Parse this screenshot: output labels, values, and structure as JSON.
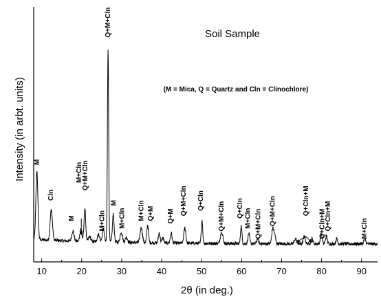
{
  "chart_data": {
    "type": "line",
    "title": "Soil Sample",
    "legend_note": "(M = Mica, Q = Quartz and Cln = Clinochlore)",
    "xlabel": "2θ (in deg.)",
    "ylabel": "Intensity (in arbt. units)",
    "xlim": [
      8,
      94
    ],
    "ylim": [
      0,
      100
    ],
    "y_ticks_shown": false,
    "grid": false,
    "x_ticks": [
      10,
      20,
      30,
      40,
      50,
      60,
      70,
      80,
      90
    ],
    "baseline": 7,
    "peaks": [
      {
        "x": 8.8,
        "h": 27,
        "w": 0.35
      },
      {
        "x": 12.4,
        "h": 12,
        "w": 0.4
      },
      {
        "x": 17.8,
        "h": 4,
        "w": 0.4
      },
      {
        "x": 19.8,
        "h": 5,
        "w": 0.35
      },
      {
        "x": 20.8,
        "h": 13,
        "w": 0.3
      },
      {
        "x": 22.0,
        "h": 2,
        "w": 0.4
      },
      {
        "x": 24.2,
        "h": 3,
        "w": 0.4
      },
      {
        "x": 25.4,
        "h": 5,
        "w": 0.35
      },
      {
        "x": 26.6,
        "h": 76,
        "w": 0.22
      },
      {
        "x": 27.9,
        "h": 11,
        "w": 0.3
      },
      {
        "x": 29.9,
        "h": 4,
        "w": 0.4
      },
      {
        "x": 31.2,
        "h": 2,
        "w": 0.4
      },
      {
        "x": 34.9,
        "h": 6,
        "w": 0.4
      },
      {
        "x": 36.5,
        "h": 7,
        "w": 0.3
      },
      {
        "x": 39.4,
        "h": 4,
        "w": 0.3
      },
      {
        "x": 40.3,
        "h": 2,
        "w": 0.3
      },
      {
        "x": 42.4,
        "h": 4,
        "w": 0.3
      },
      {
        "x": 45.8,
        "h": 6,
        "w": 0.35
      },
      {
        "x": 50.1,
        "h": 9,
        "w": 0.25
      },
      {
        "x": 54.9,
        "h": 4,
        "w": 0.35
      },
      {
        "x": 55.3,
        "h": 2,
        "w": 0.3
      },
      {
        "x": 59.9,
        "h": 7,
        "w": 0.25
      },
      {
        "x": 61.8,
        "h": 4,
        "w": 0.3
      },
      {
        "x": 64.0,
        "h": 2,
        "w": 0.3
      },
      {
        "x": 67.8,
        "h": 6,
        "w": 0.35
      },
      {
        "x": 68.3,
        "h": 3,
        "w": 0.3
      },
      {
        "x": 73.5,
        "h": 2,
        "w": 0.4
      },
      {
        "x": 75.7,
        "h": 3,
        "w": 0.35
      },
      {
        "x": 77.6,
        "h": 2,
        "w": 0.35
      },
      {
        "x": 79.9,
        "h": 4,
        "w": 0.3
      },
      {
        "x": 81.2,
        "h": 3,
        "w": 0.3
      },
      {
        "x": 83.8,
        "h": 2,
        "w": 0.3
      },
      {
        "x": 90.8,
        "h": 2,
        "w": 0.35
      }
    ],
    "peak_labels": [
      {
        "text": "M",
        "x": 8.9,
        "y": 38
      },
      {
        "text": "Cln",
        "x": 12.4,
        "y": 24
      },
      {
        "text": "M",
        "x": 17.5,
        "y": 16
      },
      {
        "text": "M+Cln",
        "x": 19.4,
        "y": 31
      },
      {
        "text": "Q+M+Cln",
        "x": 21.0,
        "y": 28
      },
      {
        "text": "M+Cln",
        "x": 25.2,
        "y": 12
      },
      {
        "text": "Q+M+Cln",
        "x": 26.6,
        "y": 88
      },
      {
        "text": "M",
        "x": 28.1,
        "y": 22
      },
      {
        "text": "M+Cln",
        "x": 30.2,
        "y": 13
      },
      {
        "text": "M+Cln",
        "x": 35.0,
        "y": 16
      },
      {
        "text": "Q+M",
        "x": 37.3,
        "y": 16
      },
      {
        "text": "Q+M",
        "x": 42.3,
        "y": 15
      },
      {
        "text": "Q+M+Cln",
        "x": 45.6,
        "y": 18
      },
      {
        "text": "Q+Cln",
        "x": 49.9,
        "y": 20
      },
      {
        "text": "Q+M+Cln",
        "x": 55.0,
        "y": 12
      },
      {
        "text": "Q+Cln",
        "x": 59.7,
        "y": 17
      },
      {
        "text": "M+Cln",
        "x": 61.6,
        "y": 13
      },
      {
        "text": "Q+M+Cln",
        "x": 64.2,
        "y": 9
      },
      {
        "text": "Q+M+Cln",
        "x": 67.8,
        "y": 14
      },
      {
        "text": "Q+Cln+M",
        "x": 76.2,
        "y": 18
      },
      {
        "text": "Q+Cln+M",
        "x": 80.2,
        "y": 9
      },
      {
        "text": "Q+Cln+M",
        "x": 81.7,
        "y": 12
      },
      {
        "text": "M+Cln",
        "x": 90.8,
        "y": 9
      }
    ],
    "arrows": [
      {
        "from": [
          19.9,
          17
        ],
        "to": [
          19.9,
          10.5
        ]
      },
      {
        "from": [
          76.0,
          10
        ],
        "to": [
          73.6,
          7.5
        ]
      },
      {
        "from": [
          76.0,
          10
        ],
        "to": [
          77.7,
          7.5
        ]
      }
    ]
  }
}
